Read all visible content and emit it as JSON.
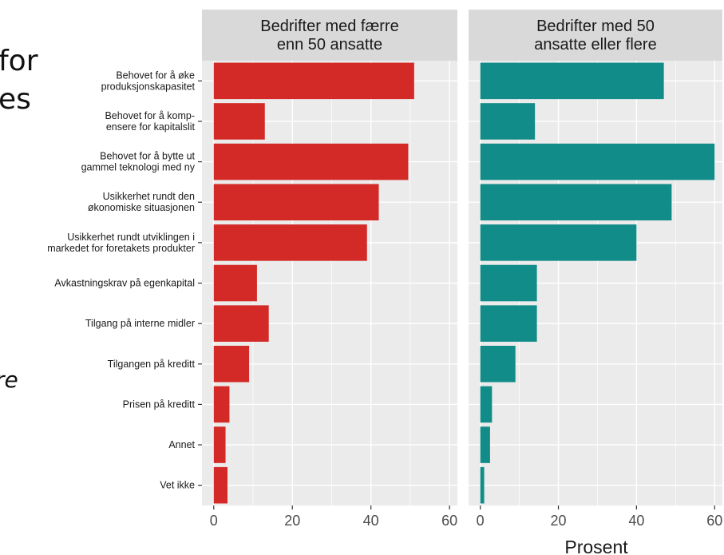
{
  "background_fragments": [
    "for",
    "es",
    "re"
  ],
  "chart_data": {
    "type": "bar",
    "orientation": "horizontal",
    "facet_layout": "two panels side by side, shared category axis",
    "categories": [
      [
        "Behovet for å øke",
        "produksjonskapasitet"
      ],
      [
        "Behovet for å komp-",
        "ensere for kapitalslit"
      ],
      [
        "Behovet for å bytte ut",
        "gammel teknologi med ny"
      ],
      [
        "Usikkerhet rundt den",
        "økonomiske situasjonen"
      ],
      [
        "Usikkerhet rundt utviklingen i",
        "markedet for foretakets produkter"
      ],
      [
        "Avkastningskrav på egenkapital"
      ],
      [
        "Tilgang på interne midler"
      ],
      [
        "Tilgangen på kreditt"
      ],
      [
        "Prisen på kreditt"
      ],
      [
        "Annet"
      ],
      [
        "Vet ikke"
      ]
    ],
    "series": [
      {
        "panel_title": [
          "Bedrifter med færre",
          "enn 50 ansatte"
        ],
        "color": "#d42a27",
        "values": [
          51,
          13,
          49.5,
          42,
          39,
          11,
          14,
          9,
          4,
          3,
          3.5
        ]
      },
      {
        "panel_title": [
          "Bedrifter med 50",
          "ansatte eller flere"
        ],
        "color": "#128c89",
        "values": [
          47,
          14,
          60,
          49,
          40,
          14.5,
          14.5,
          9,
          3,
          2.5,
          1
        ]
      }
    ],
    "x_ticks": [
      "0",
      "20",
      "40",
      "60"
    ],
    "xlim": [
      -3,
      62
    ],
    "xlabel": "Prosent",
    "ylabel": "",
    "grid": true,
    "panel_background": "#ebebeb",
    "strip_background": "#d9d9d9"
  }
}
